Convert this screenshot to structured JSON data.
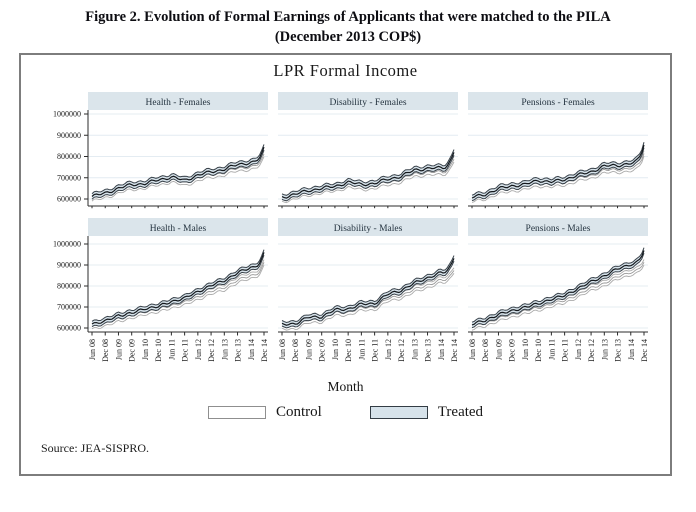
{
  "figure": {
    "title_line1": "Figure 2. Evolution of Formal Earnings of Applicants that were matched to the PILA",
    "title_line2": "(December 2013 COP$)",
    "source": "Source: JEA-SISPRO."
  },
  "chart_data": {
    "type": "line",
    "title": "LPR Formal Income",
    "xlabel": "Month",
    "ylabel": "",
    "categories": [
      "Jun 08",
      "Dec 08",
      "Jun 09",
      "Dec 09",
      "Jun 10",
      "Dec 10",
      "Jun 11",
      "Dec 11",
      "Jun 12",
      "Dec 12",
      "Jun 13",
      "Dec 13",
      "Jun 14",
      "Dec 14"
    ],
    "ylim": [
      600000,
      1000000
    ],
    "yticks": [
      600000,
      700000,
      800000,
      900000,
      1000000
    ],
    "grid": "horizontal",
    "legend_position": "bottom",
    "legend": [
      {
        "label": "Control",
        "fill": "#ffffff",
        "edge": "#8f8f8f"
      },
      {
        "label": "Treated",
        "fill": "#d6e2ea",
        "edge": "#333c44"
      }
    ],
    "band_halfwidth": 13000,
    "colors": {
      "header_strip": "#dbe5eb",
      "header_text": "#253440",
      "gridline": "#e4ecf2",
      "axis": "#2b2b2b",
      "treated_fill": "#d6e2ea",
      "treated_edge": "#39424a",
      "treated_line": "#14181c",
      "control_fill": "#ffffff",
      "control_edge": "#ababab",
      "control_line": "#9a9a9a",
      "tick_text": "#1c1c1c"
    },
    "panels": [
      {
        "title": "Health - Females",
        "row": 0,
        "col": 0,
        "series": [
          {
            "name": "Treated",
            "values": [
              612000,
              628000,
              650000,
              668000,
              672000,
              690000,
              703000,
              688000,
              712000,
              728000,
              740000,
              762000,
              772000,
              838000
            ]
          },
          {
            "name": "Control",
            "values": [
              603000,
              618000,
              640000,
              657000,
              662000,
              678000,
              692000,
              676000,
              698000,
              714000,
              724000,
              745000,
              752000,
              806000
            ]
          }
        ]
      },
      {
        "title": "Disability - Females",
        "row": 0,
        "col": 1,
        "series": [
          {
            "name": "Treated",
            "values": [
              608000,
              622000,
              640000,
              650000,
              660000,
              678000,
              670000,
              672000,
              695000,
              705000,
              738000,
              742000,
              748000,
              822000
            ]
          },
          {
            "name": "Control",
            "values": [
              600000,
              612000,
              630000,
              640000,
              650000,
              666000,
              658000,
              660000,
              680000,
              690000,
              720000,
              724000,
              728000,
              790000
            ]
          }
        ]
      },
      {
        "title": "Pensions - Females",
        "row": 0,
        "col": 2,
        "series": [
          {
            "name": "Treated",
            "values": [
              607000,
              622000,
              648000,
              662000,
              668000,
              688000,
              680000,
              692000,
              712000,
              728000,
              755000,
              758000,
              768000,
              858000
            ]
          },
          {
            "name": "Control",
            "values": [
              599000,
              612000,
              636000,
              650000,
              656000,
              674000,
              668000,
              678000,
              696000,
              710000,
              735000,
              738000,
              744000,
              818000
            ]
          }
        ]
      },
      {
        "title": "Health - Males",
        "row": 1,
        "col": 0,
        "series": [
          {
            "name": "Treated",
            "values": [
              622000,
              630000,
              662000,
              668000,
              695000,
              700000,
              728000,
              740000,
              775000,
              800000,
              828000,
              860000,
              890000,
              952000
            ]
          },
          {
            "name": "Control",
            "values": [
              612000,
              618000,
              648000,
              655000,
              680000,
              686000,
              710000,
              720000,
              750000,
              772000,
              795000,
              825000,
              852000,
              905000
            ]
          }
        ]
      },
      {
        "title": "Disability - Males",
        "row": 1,
        "col": 1,
        "series": [
          {
            "name": "Treated",
            "values": [
              615000,
              622000,
              650000,
              655000,
              685000,
              692000,
              712000,
              718000,
              760000,
              780000,
              812000,
              840000,
              862000,
              938000
            ]
          },
          {
            "name": "Control",
            "values": [
              605000,
              610000,
              636000,
              642000,
              670000,
              676000,
              695000,
              700000,
              738000,
              755000,
              782000,
              806000,
              826000,
              880000
            ]
          }
        ]
      },
      {
        "title": "Pensions - Males",
        "row": 1,
        "col": 2,
        "series": [
          {
            "name": "Treated",
            "values": [
              622000,
              632000,
              668000,
              678000,
              702000,
              712000,
              740000,
              752000,
              790000,
              818000,
              850000,
              880000,
              905000,
              968000
            ]
          },
          {
            "name": "Control",
            "values": [
              610000,
              618000,
              650000,
              660000,
              685000,
              692000,
              718000,
              728000,
              762000,
              788000,
              815000,
              842000,
              868000,
              912000
            ]
          }
        ]
      }
    ]
  }
}
